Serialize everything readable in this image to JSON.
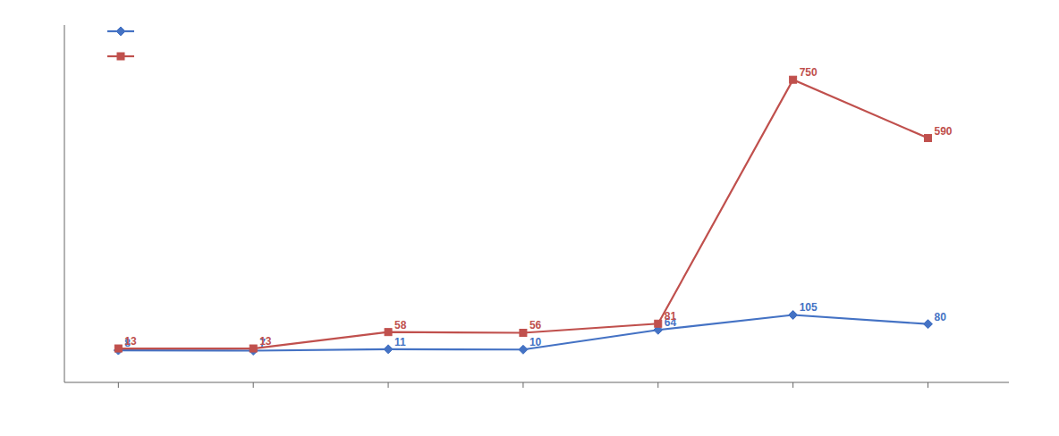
{
  "chart_data": {
    "type": "line",
    "x": [
      1,
      2,
      3,
      4,
      5,
      6,
      7
    ],
    "series": [
      {
        "color": "#4472C4",
        "values": [
          8,
          7,
          11,
          10,
          64,
          105,
          80
        ],
        "marker": "diamond"
      },
      {
        "color": "#C0504D",
        "values": [
          13,
          13,
          58,
          56,
          81,
          750,
          590
        ],
        "marker": "square"
      }
    ],
    "xlim": [
      0.6,
      7.6
    ],
    "ylim": [
      -80,
      900
    ],
    "xticks": [
      1,
      2,
      3,
      4,
      5,
      6,
      7
    ],
    "tick_labels": false,
    "data_labels": true,
    "legend": "upper left",
    "grid": false
  }
}
